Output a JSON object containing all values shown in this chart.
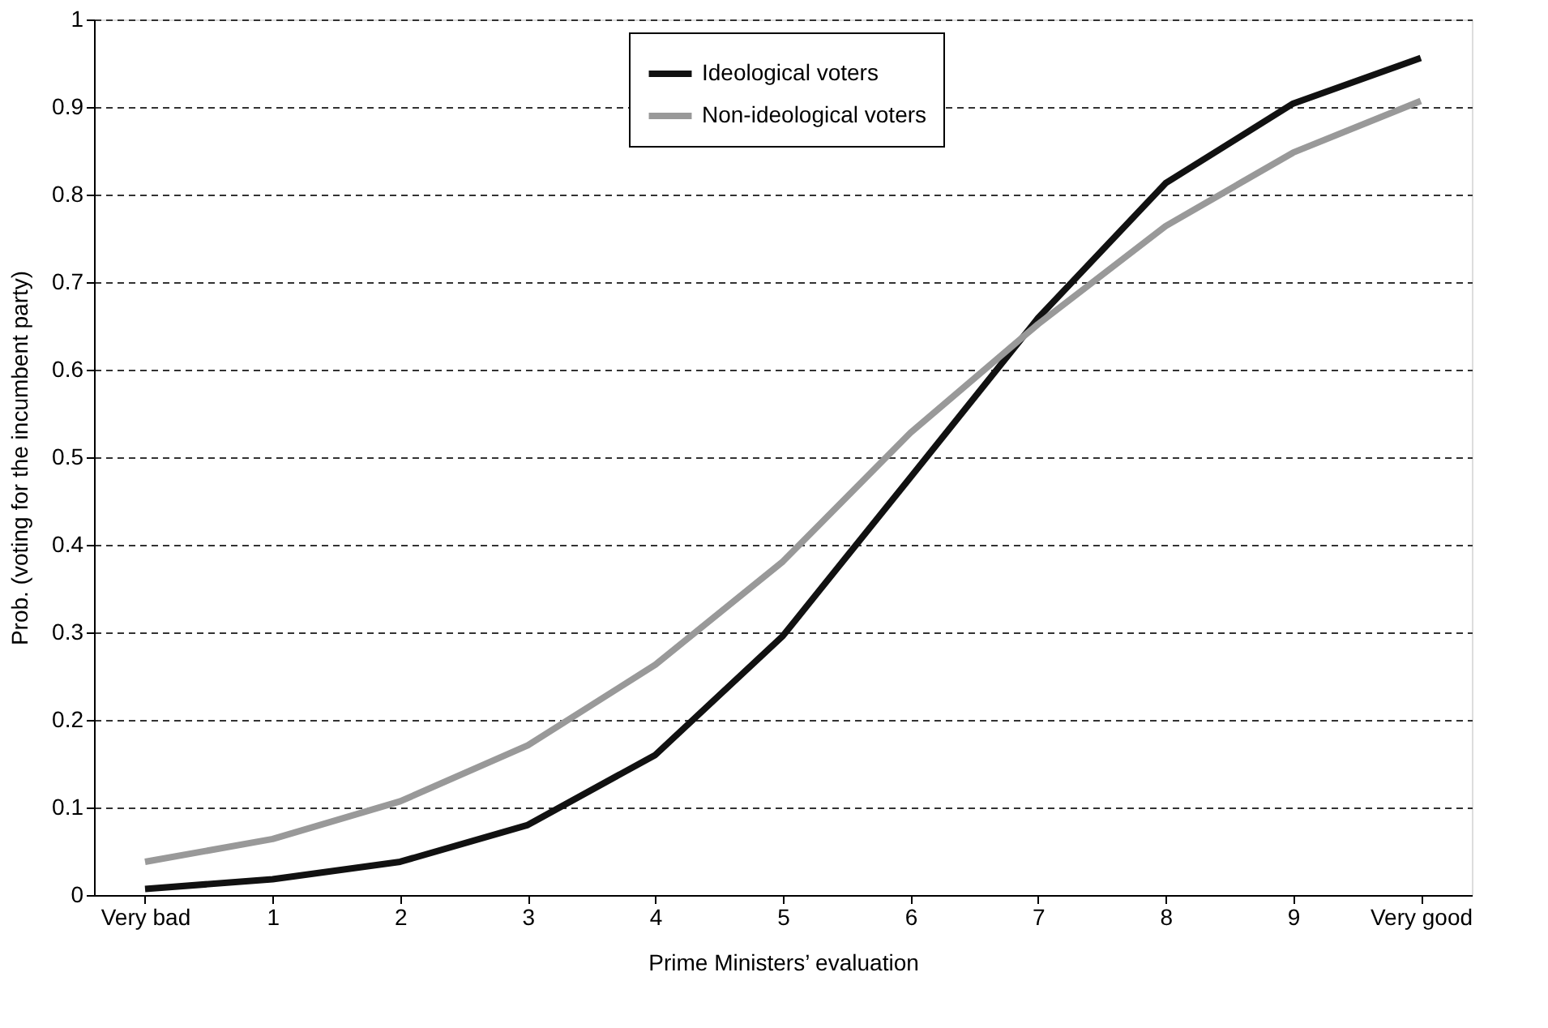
{
  "chart_data": {
    "type": "line",
    "xlabel": "Prime Ministers’ evaluation",
    "ylabel": "Prob. (voting for the incumbent party)",
    "categories": [
      "Very bad",
      "1",
      "2",
      "3",
      "4",
      "5",
      "6",
      "7",
      "8",
      "9",
      "Very good"
    ],
    "series": [
      {
        "name": "Ideological voters",
        "color": "#111111",
        "values": [
          0.007,
          0.018,
          0.038,
          0.08,
          0.16,
          0.296,
          0.477,
          0.659,
          0.813,
          0.904,
          0.956
        ]
      },
      {
        "name": "Non-ideological voters",
        "color": "#999999",
        "values": [
          0.038,
          0.064,
          0.107,
          0.171,
          0.263,
          0.381,
          0.528,
          0.652,
          0.764,
          0.848,
          0.907
        ]
      }
    ],
    "ylim": [
      0,
      1
    ],
    "yticks": [
      0,
      0.1,
      0.2,
      0.3,
      0.4,
      0.5,
      0.6,
      0.7,
      0.8,
      0.9,
      1
    ],
    "grid": "y",
    "legend": "top",
    "marker": "none",
    "line_style": "solid"
  }
}
